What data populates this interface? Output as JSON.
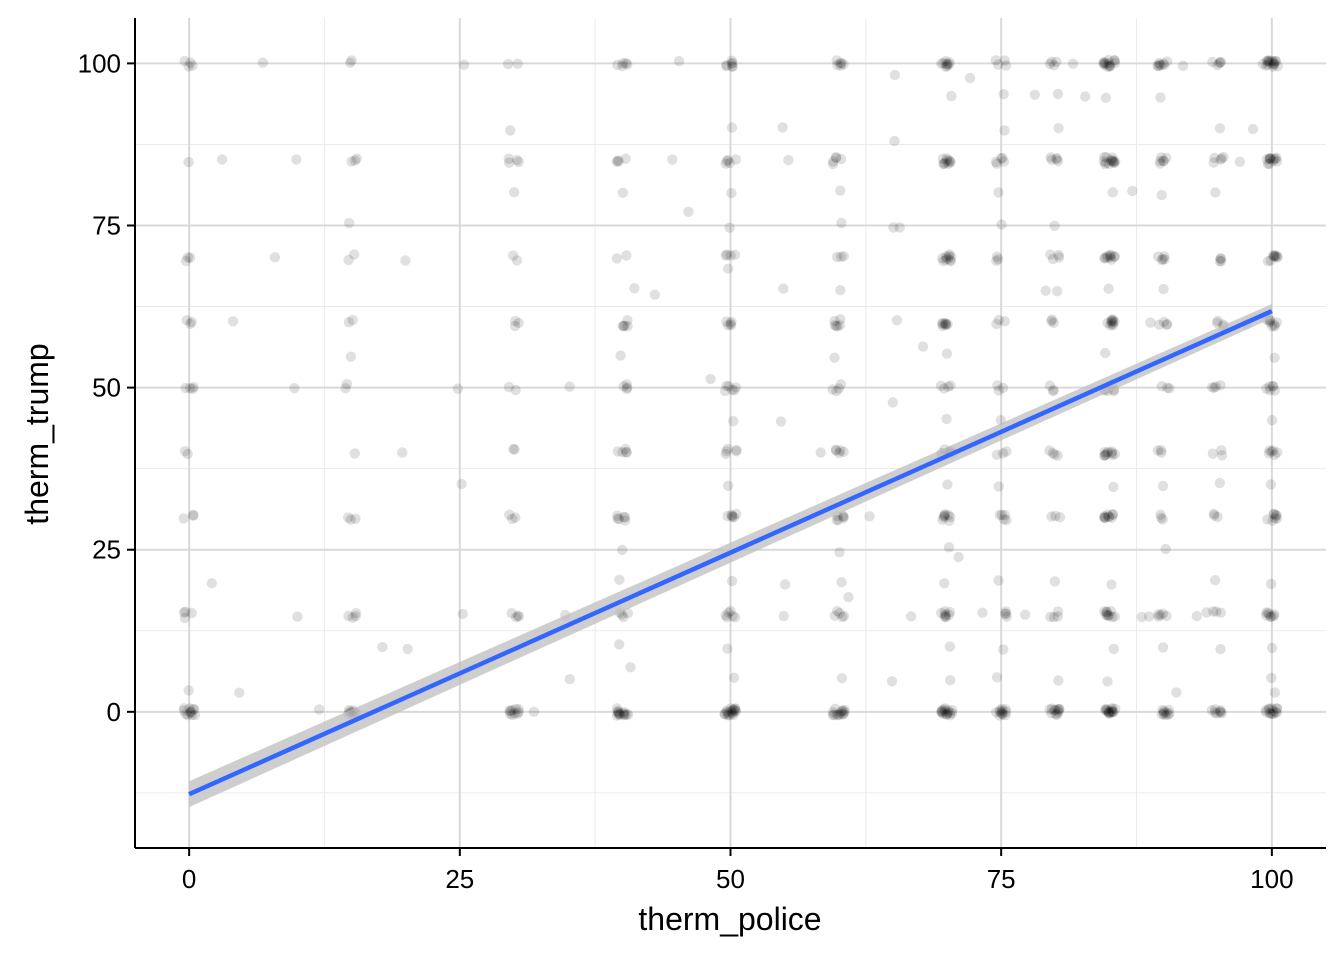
{
  "chart_data": {
    "type": "scatter",
    "title": "",
    "xlabel": "therm_police",
    "ylabel": "therm_trump",
    "xlim": [
      -5,
      105
    ],
    "ylim": [
      -21,
      107
    ],
    "x_ticks": [
      0,
      25,
      50,
      75,
      100
    ],
    "y_ticks": [
      0,
      25,
      50,
      75,
      100
    ],
    "x_tick_labels": [
      "0",
      "25",
      "50",
      "75",
      "100"
    ],
    "y_tick_labels": [
      "0",
      "25",
      "50",
      "75",
      "100"
    ],
    "grid": true,
    "point_style": {
      "color": "#000000",
      "alpha": 0.12
    },
    "fit_line": {
      "method": "linear",
      "color": "#3366ff",
      "band_color": "#bdbdbd",
      "x": [
        0,
        100
      ],
      "y": [
        -12.7,
        61.8
      ],
      "ci_lower": [
        -14.7,
        60.7
      ],
      "ci_upper": [
        -10.7,
        62.9
      ]
    },
    "point_groups": {
      "x_values": [
        0,
        15,
        30,
        40,
        50,
        60,
        70,
        75,
        80,
        85,
        90,
        95,
        100
      ],
      "y_values": [
        0,
        15,
        30,
        40,
        50,
        60,
        70,
        85,
        100
      ],
      "counts": [
        [
          12,
          4,
          3,
          2,
          4,
          3,
          3,
          1,
          4
        ],
        [
          8,
          4,
          3,
          1,
          2,
          2,
          2,
          3,
          2
        ],
        [
          10,
          4,
          3,
          2,
          2,
          3,
          2,
          4,
          2
        ],
        [
          14,
          4,
          6,
          5,
          4,
          5,
          2,
          4,
          5
        ],
        [
          18,
          6,
          6,
          5,
          6,
          5,
          4,
          5,
          7
        ],
        [
          14,
          5,
          6,
          5,
          4,
          6,
          3,
          5,
          6
        ],
        [
          16,
          8,
          8,
          7,
          4,
          8,
          10,
          10,
          9
        ],
        [
          12,
          4,
          5,
          3,
          3,
          3,
          3,
          5,
          4
        ],
        [
          12,
          4,
          3,
          4,
          3,
          3,
          4,
          5,
          4
        ],
        [
          16,
          10,
          10,
          10,
          6,
          10,
          10,
          14,
          14
        ],
        [
          10,
          5,
          3,
          3,
          3,
          4,
          5,
          5,
          8
        ],
        [
          8,
          3,
          3,
          3,
          3,
          4,
          4,
          5,
          5
        ],
        [
          14,
          8,
          8,
          6,
          6,
          8,
          9,
          12,
          16
        ]
      ],
      "scattered": [
        [
          0,
          3
        ],
        [
          2,
          20
        ],
        [
          3,
          85
        ],
        [
          4,
          60
        ],
        [
          5,
          3
        ],
        [
          7,
          100
        ],
        [
          8,
          70
        ],
        [
          10,
          85
        ],
        [
          10,
          15
        ],
        [
          10,
          50
        ],
        [
          12,
          0
        ],
        [
          15,
          75
        ],
        [
          15,
          55
        ],
        [
          18,
          10
        ],
        [
          20,
          70
        ],
        [
          20,
          40
        ],
        [
          20,
          10
        ],
        [
          25,
          100
        ],
        [
          25,
          35
        ],
        [
          25,
          50
        ],
        [
          25,
          15
        ],
        [
          30,
          90
        ],
        [
          30,
          80
        ],
        [
          32,
          0
        ],
        [
          35,
          50
        ],
        [
          35,
          15
        ],
        [
          35,
          5
        ],
        [
          40,
          80
        ],
        [
          40,
          55
        ],
        [
          40,
          25
        ],
        [
          40,
          20
        ],
        [
          40,
          10
        ],
        [
          41,
          65
        ],
        [
          41,
          7
        ],
        [
          43,
          64
        ],
        [
          45,
          100
        ],
        [
          45,
          85
        ],
        [
          46,
          77
        ],
        [
          48,
          51
        ],
        [
          50,
          90
        ],
        [
          50,
          80
        ],
        [
          50,
          75
        ],
        [
          50,
          68
        ],
        [
          50,
          45
        ],
        [
          50,
          35
        ],
        [
          50,
          20
        ],
        [
          50,
          10
        ],
        [
          50,
          5
        ],
        [
          55,
          90
        ],
        [
          55,
          85
        ],
        [
          55,
          65
        ],
        [
          55,
          45
        ],
        [
          55,
          20
        ],
        [
          55,
          15
        ],
        [
          58,
          40
        ],
        [
          60,
          80
        ],
        [
          60,
          75
        ],
        [
          60,
          65
        ],
        [
          60,
          55
        ],
        [
          60,
          25
        ],
        [
          60,
          20
        ],
        [
          60,
          5
        ],
        [
          61,
          18
        ],
        [
          63,
          30
        ],
        [
          65,
          98
        ],
        [
          65,
          88
        ],
        [
          65,
          75
        ],
        [
          65,
          60
        ],
        [
          65,
          48
        ],
        [
          65,
          5
        ],
        [
          66,
          75
        ],
        [
          67,
          15
        ],
        [
          68,
          56
        ],
        [
          70,
          95
        ],
        [
          70,
          55
        ],
        [
          70,
          45
        ],
        [
          70,
          35
        ],
        [
          70,
          25
        ],
        [
          70,
          20
        ],
        [
          70,
          10
        ],
        [
          70,
          5
        ],
        [
          71,
          24
        ],
        [
          72,
          98
        ],
        [
          73,
          15
        ],
        [
          75,
          95
        ],
        [
          75,
          90
        ],
        [
          75,
          80
        ],
        [
          75,
          75
        ],
        [
          75,
          45
        ],
        [
          75,
          35
        ],
        [
          75,
          20
        ],
        [
          75,
          10
        ],
        [
          75,
          5
        ],
        [
          77,
          15
        ],
        [
          78,
          95
        ],
        [
          79,
          65
        ],
        [
          80,
          95
        ],
        [
          80,
          90
        ],
        [
          80,
          75
        ],
        [
          80,
          65
        ],
        [
          80,
          20
        ],
        [
          80,
          5
        ],
        [
          82,
          100
        ],
        [
          83,
          95
        ],
        [
          85,
          95
        ],
        [
          85,
          80
        ],
        [
          85,
          65
        ],
        [
          85,
          55
        ],
        [
          85,
          35
        ],
        [
          85,
          20
        ],
        [
          85,
          10
        ],
        [
          85,
          5
        ],
        [
          87,
          80
        ],
        [
          88,
          15
        ],
        [
          89,
          15
        ],
        [
          89,
          60
        ],
        [
          90,
          95
        ],
        [
          90,
          85
        ],
        [
          90,
          80
        ],
        [
          90,
          65
        ],
        [
          90,
          35
        ],
        [
          90,
          25
        ],
        [
          90,
          10
        ],
        [
          91,
          3
        ],
        [
          92,
          100
        ],
        [
          93,
          15
        ],
        [
          94,
          15
        ],
        [
          95,
          90
        ],
        [
          95,
          80
        ],
        [
          95,
          50
        ],
        [
          95,
          35
        ],
        [
          95,
          20
        ],
        [
          95,
          10
        ],
        [
          97,
          85
        ],
        [
          98,
          60
        ],
        [
          98,
          90
        ],
        [
          99,
          100
        ],
        [
          100,
          45
        ],
        [
          100,
          35
        ],
        [
          100,
          20
        ],
        [
          100,
          10
        ],
        [
          100,
          5
        ],
        [
          100,
          3
        ],
        [
          100,
          55
        ]
      ]
    }
  }
}
